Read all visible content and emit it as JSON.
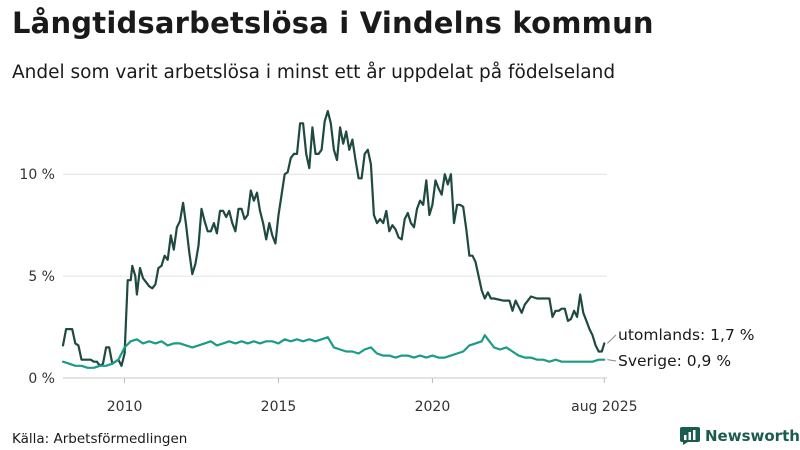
{
  "title": "Långtidsarbetslösa i Vindelns kommun",
  "subtitle": "Andel som varit arbetslösa i minst ett år uppdelat på födelseland",
  "source": "Källa: Arbetsförmedlingen",
  "brand": {
    "name": "Newsworthy",
    "icon": "bar-chart-logo-icon",
    "color": "#1a5c4f"
  },
  "chart_data": {
    "type": "line",
    "yticks": [
      {
        "value": 0,
        "label": "0 %"
      },
      {
        "value": 5,
        "label": "5 %"
      },
      {
        "value": 10,
        "label": "10 %"
      }
    ],
    "xticks": [
      {
        "value": 2010,
        "label": "2010"
      },
      {
        "value": 2015,
        "label": "2015"
      },
      {
        "value": 2020,
        "label": "2020"
      },
      {
        "value": 2025.583,
        "label": "aug 2025"
      }
    ],
    "ylim": [
      0,
      13.3
    ],
    "xlim": [
      2008.0,
      2025.67
    ],
    "grid": true,
    "series": [
      {
        "name": "utomlands",
        "color": "#1f4a41",
        "end_label": "utomlands: 1,7 %",
        "points": [
          [
            2008.0,
            1.6
          ],
          [
            2008.1,
            2.4
          ],
          [
            2008.3,
            2.4
          ],
          [
            2008.4,
            1.7
          ],
          [
            2008.5,
            1.6
          ],
          [
            2008.6,
            0.9
          ],
          [
            2008.9,
            0.9
          ],
          [
            2009.0,
            0.8
          ],
          [
            2009.1,
            0.8
          ],
          [
            2009.2,
            0.6
          ],
          [
            2009.3,
            0.7
          ],
          [
            2009.4,
            1.5
          ],
          [
            2009.5,
            1.5
          ],
          [
            2009.6,
            0.7
          ],
          [
            2009.8,
            0.9
          ],
          [
            2009.9,
            0.6
          ],
          [
            2010.0,
            1.2
          ],
          [
            2010.1,
            4.8
          ],
          [
            2010.2,
            4.8
          ],
          [
            2010.25,
            5.5
          ],
          [
            2010.35,
            5.0
          ],
          [
            2010.4,
            4.1
          ],
          [
            2010.5,
            5.4
          ],
          [
            2010.6,
            4.9
          ],
          [
            2010.7,
            4.7
          ],
          [
            2010.8,
            4.5
          ],
          [
            2010.9,
            4.4
          ],
          [
            2011.0,
            4.6
          ],
          [
            2011.1,
            5.4
          ],
          [
            2011.2,
            5.5
          ],
          [
            2011.3,
            6.0
          ],
          [
            2011.4,
            5.8
          ],
          [
            2011.5,
            7.0
          ],
          [
            2011.6,
            6.3
          ],
          [
            2011.7,
            7.4
          ],
          [
            2011.8,
            7.7
          ],
          [
            2011.9,
            8.6
          ],
          [
            2012.0,
            7.5
          ],
          [
            2012.1,
            6.2
          ],
          [
            2012.2,
            5.1
          ],
          [
            2012.3,
            5.6
          ],
          [
            2012.4,
            6.5
          ],
          [
            2012.5,
            8.3
          ],
          [
            2012.6,
            7.7
          ],
          [
            2012.7,
            7.2
          ],
          [
            2012.8,
            7.2
          ],
          [
            2012.9,
            7.6
          ],
          [
            2013.0,
            7.1
          ],
          [
            2013.1,
            8.2
          ],
          [
            2013.2,
            8.2
          ],
          [
            2013.3,
            7.9
          ],
          [
            2013.4,
            8.2
          ],
          [
            2013.5,
            7.6
          ],
          [
            2013.6,
            7.2
          ],
          [
            2013.7,
            8.3
          ],
          [
            2013.8,
            8.3
          ],
          [
            2013.9,
            7.8
          ],
          [
            2014.0,
            8.0
          ],
          [
            2014.1,
            9.2
          ],
          [
            2014.2,
            8.7
          ],
          [
            2014.3,
            9.1
          ],
          [
            2014.4,
            8.2
          ],
          [
            2014.5,
            7.6
          ],
          [
            2014.6,
            6.8
          ],
          [
            2014.7,
            7.6
          ],
          [
            2014.8,
            7.0
          ],
          [
            2014.9,
            6.6
          ],
          [
            2015.0,
            8.0
          ],
          [
            2015.1,
            9.0
          ],
          [
            2015.2,
            10.0
          ],
          [
            2015.3,
            10.1
          ],
          [
            2015.4,
            10.8
          ],
          [
            2015.5,
            11.0
          ],
          [
            2015.6,
            11.0
          ],
          [
            2015.7,
            12.5
          ],
          [
            2015.8,
            12.5
          ],
          [
            2015.9,
            11.0
          ],
          [
            2016.0,
            10.3
          ],
          [
            2016.1,
            12.3
          ],
          [
            2016.2,
            11.0
          ],
          [
            2016.3,
            11.0
          ],
          [
            2016.4,
            11.2
          ],
          [
            2016.5,
            12.6
          ],
          [
            2016.6,
            13.1
          ],
          [
            2016.7,
            12.5
          ],
          [
            2016.8,
            11.2
          ],
          [
            2016.9,
            10.7
          ],
          [
            2017.0,
            12.3
          ],
          [
            2017.1,
            11.5
          ],
          [
            2017.2,
            12.1
          ],
          [
            2017.3,
            11.2
          ],
          [
            2017.4,
            11.7
          ],
          [
            2017.5,
            10.7
          ],
          [
            2017.6,
            9.8
          ],
          [
            2017.7,
            9.8
          ],
          [
            2017.8,
            11.0
          ],
          [
            2017.9,
            11.2
          ],
          [
            2018.0,
            10.5
          ],
          [
            2018.1,
            8.0
          ],
          [
            2018.2,
            7.6
          ],
          [
            2018.3,
            7.8
          ],
          [
            2018.4,
            7.6
          ],
          [
            2018.5,
            8.2
          ],
          [
            2018.6,
            7.2
          ],
          [
            2018.7,
            7.5
          ],
          [
            2018.8,
            7.3
          ],
          [
            2018.9,
            6.9
          ],
          [
            2019.0,
            6.8
          ],
          [
            2019.1,
            7.8
          ],
          [
            2019.2,
            8.1
          ],
          [
            2019.3,
            7.6
          ],
          [
            2019.4,
            7.4
          ],
          [
            2019.5,
            8.3
          ],
          [
            2019.6,
            8.7
          ],
          [
            2019.7,
            8.5
          ],
          [
            2019.8,
            9.7
          ],
          [
            2019.9,
            8.0
          ],
          [
            2020.0,
            8.5
          ],
          [
            2020.1,
            9.7
          ],
          [
            2020.2,
            9.3
          ],
          [
            2020.3,
            9.0
          ],
          [
            2020.4,
            10.0
          ],
          [
            2020.5,
            9.5
          ],
          [
            2020.6,
            10.0
          ],
          [
            2020.7,
            7.6
          ],
          [
            2020.8,
            8.5
          ],
          [
            2020.9,
            8.5
          ],
          [
            2021.0,
            8.4
          ],
          [
            2021.1,
            7.3
          ],
          [
            2021.2,
            6.0
          ],
          [
            2021.3,
            6.0
          ],
          [
            2021.4,
            5.7
          ],
          [
            2021.5,
            5.0
          ],
          [
            2021.6,
            4.3
          ],
          [
            2021.7,
            3.9
          ],
          [
            2021.8,
            4.2
          ],
          [
            2021.9,
            3.9
          ],
          [
            2022.0,
            3.9
          ],
          [
            2022.3,
            3.8
          ],
          [
            2022.5,
            3.8
          ],
          [
            2022.6,
            3.3
          ],
          [
            2022.7,
            3.8
          ],
          [
            2022.8,
            3.5
          ],
          [
            2022.9,
            3.2
          ],
          [
            2023.0,
            3.6
          ],
          [
            2023.1,
            3.8
          ],
          [
            2023.2,
            4.0
          ],
          [
            2023.4,
            3.9
          ],
          [
            2023.8,
            3.9
          ],
          [
            2023.9,
            3.0
          ],
          [
            2024.0,
            3.3
          ],
          [
            2024.1,
            3.3
          ],
          [
            2024.2,
            3.4
          ],
          [
            2024.3,
            3.4
          ],
          [
            2024.4,
            2.8
          ],
          [
            2024.5,
            2.9
          ],
          [
            2024.6,
            3.3
          ],
          [
            2024.7,
            3.0
          ],
          [
            2024.8,
            4.1
          ],
          [
            2024.9,
            3.2
          ],
          [
            2025.0,
            2.8
          ],
          [
            2025.1,
            2.4
          ],
          [
            2025.2,
            2.1
          ],
          [
            2025.3,
            1.6
          ],
          [
            2025.4,
            1.3
          ],
          [
            2025.5,
            1.3
          ],
          [
            2025.583,
            1.7
          ]
        ]
      },
      {
        "name": "Sverige",
        "color": "#1a9c86",
        "end_label": "Sverige: 0,9 %",
        "points": [
          [
            2008.0,
            0.8
          ],
          [
            2008.2,
            0.7
          ],
          [
            2008.4,
            0.6
          ],
          [
            2008.6,
            0.6
          ],
          [
            2008.8,
            0.5
          ],
          [
            2009.0,
            0.5
          ],
          [
            2009.2,
            0.6
          ],
          [
            2009.4,
            0.6
          ],
          [
            2009.6,
            0.7
          ],
          [
            2009.8,
            0.9
          ],
          [
            2010.0,
            1.5
          ],
          [
            2010.2,
            1.8
          ],
          [
            2010.4,
            1.9
          ],
          [
            2010.6,
            1.7
          ],
          [
            2010.8,
            1.8
          ],
          [
            2011.0,
            1.7
          ],
          [
            2011.2,
            1.8
          ],
          [
            2011.4,
            1.6
          ],
          [
            2011.6,
            1.7
          ],
          [
            2011.8,
            1.7
          ],
          [
            2012.0,
            1.6
          ],
          [
            2012.2,
            1.5
          ],
          [
            2012.4,
            1.6
          ],
          [
            2012.6,
            1.7
          ],
          [
            2012.8,
            1.8
          ],
          [
            2013.0,
            1.6
          ],
          [
            2013.2,
            1.7
          ],
          [
            2013.4,
            1.8
          ],
          [
            2013.6,
            1.7
          ],
          [
            2013.8,
            1.8
          ],
          [
            2014.0,
            1.7
          ],
          [
            2014.2,
            1.8
          ],
          [
            2014.4,
            1.7
          ],
          [
            2014.6,
            1.8
          ],
          [
            2014.8,
            1.8
          ],
          [
            2015.0,
            1.7
          ],
          [
            2015.2,
            1.9
          ],
          [
            2015.4,
            1.8
          ],
          [
            2015.6,
            1.9
          ],
          [
            2015.8,
            1.8
          ],
          [
            2016.0,
            1.9
          ],
          [
            2016.2,
            1.8
          ],
          [
            2016.4,
            1.9
          ],
          [
            2016.6,
            2.0
          ],
          [
            2016.8,
            1.5
          ],
          [
            2017.0,
            1.4
          ],
          [
            2017.2,
            1.3
          ],
          [
            2017.4,
            1.3
          ],
          [
            2017.6,
            1.2
          ],
          [
            2017.8,
            1.4
          ],
          [
            2018.0,
            1.5
          ],
          [
            2018.2,
            1.2
          ],
          [
            2018.4,
            1.1
          ],
          [
            2018.6,
            1.1
          ],
          [
            2018.8,
            1.0
          ],
          [
            2019.0,
            1.1
          ],
          [
            2019.2,
            1.1
          ],
          [
            2019.4,
            1.0
          ],
          [
            2019.6,
            1.1
          ],
          [
            2019.8,
            1.0
          ],
          [
            2020.0,
            1.1
          ],
          [
            2020.2,
            1.0
          ],
          [
            2020.4,
            1.0
          ],
          [
            2020.6,
            1.1
          ],
          [
            2020.8,
            1.2
          ],
          [
            2021.0,
            1.3
          ],
          [
            2021.2,
            1.6
          ],
          [
            2021.4,
            1.7
          ],
          [
            2021.6,
            1.8
          ],
          [
            2021.7,
            2.1
          ],
          [
            2021.8,
            1.9
          ],
          [
            2022.0,
            1.5
          ],
          [
            2022.2,
            1.4
          ],
          [
            2022.4,
            1.5
          ],
          [
            2022.6,
            1.3
          ],
          [
            2022.8,
            1.1
          ],
          [
            2023.0,
            1.0
          ],
          [
            2023.2,
            1.0
          ],
          [
            2023.4,
            0.9
          ],
          [
            2023.6,
            0.9
          ],
          [
            2023.8,
            0.8
          ],
          [
            2024.0,
            0.9
          ],
          [
            2024.2,
            0.8
          ],
          [
            2024.4,
            0.8
          ],
          [
            2024.6,
            0.8
          ],
          [
            2024.8,
            0.8
          ],
          [
            2025.0,
            0.8
          ],
          [
            2025.2,
            0.8
          ],
          [
            2025.4,
            0.9
          ],
          [
            2025.583,
            0.9
          ]
        ]
      }
    ]
  }
}
